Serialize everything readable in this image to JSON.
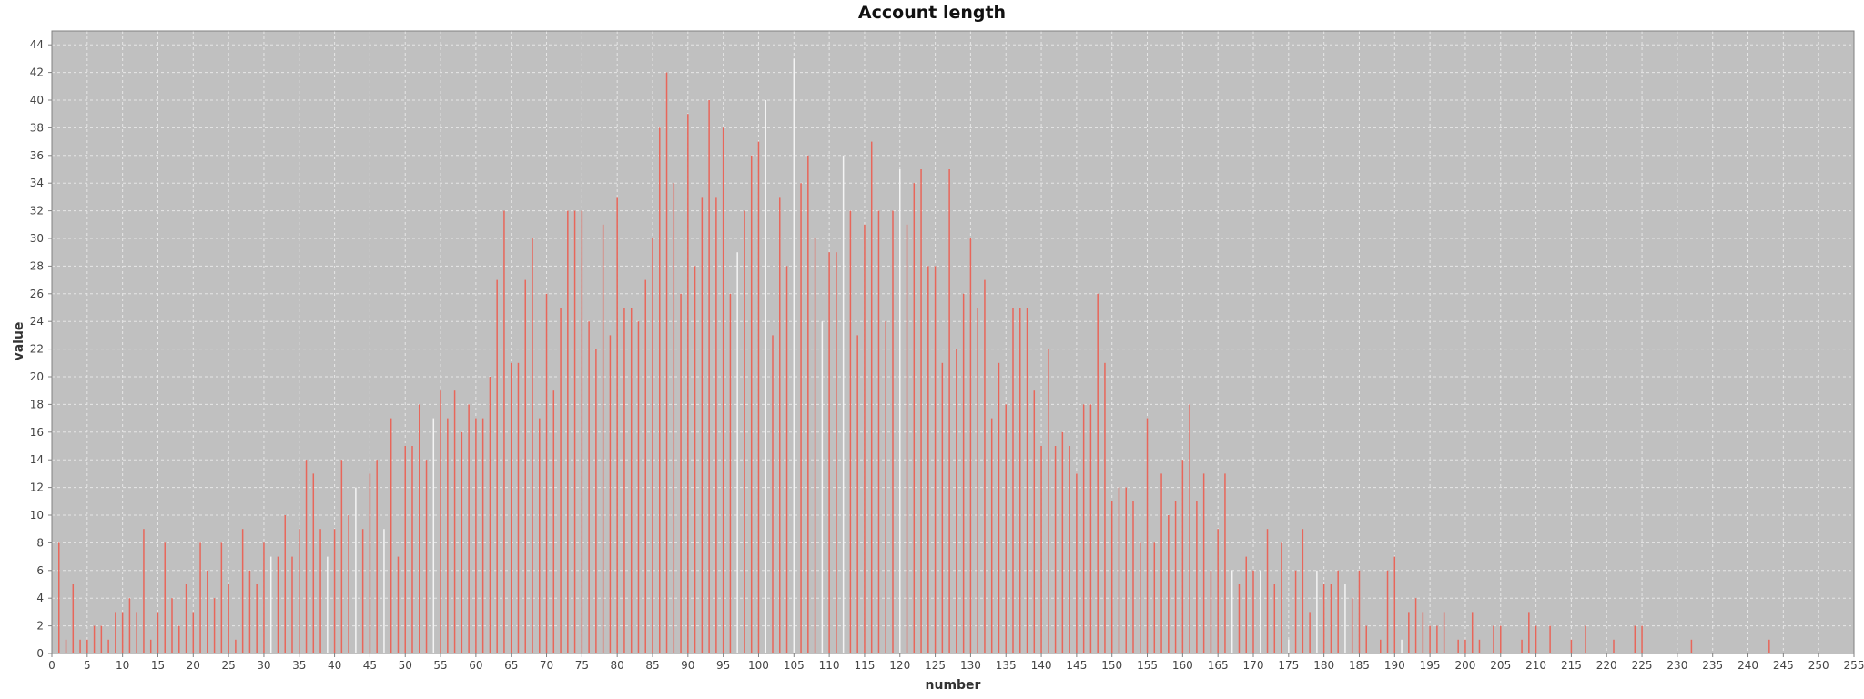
{
  "chart_data": {
    "type": "bar",
    "title": "Account length",
    "xlabel": "number",
    "ylabel": "value",
    "xlim": [
      0,
      255
    ],
    "ylim": [
      0,
      45
    ],
    "x_ticks": [
      0,
      5,
      10,
      15,
      20,
      25,
      30,
      35,
      40,
      45,
      50,
      55,
      60,
      65,
      70,
      75,
      80,
      85,
      90,
      95,
      100,
      105,
      110,
      115,
      120,
      125,
      130,
      135,
      140,
      145,
      150,
      155,
      160,
      165,
      170,
      175,
      180,
      185,
      190,
      195,
      200,
      205,
      210,
      215,
      220,
      225,
      230,
      235,
      240,
      245,
      250,
      255
    ],
    "y_ticks": [
      0,
      2,
      4,
      6,
      8,
      10,
      12,
      14,
      16,
      18,
      20,
      22,
      24,
      26,
      28,
      30,
      32,
      34,
      36,
      38,
      40,
      42,
      44
    ],
    "grid": true,
    "background_color": "#c0c0c0",
    "bar_color": "#e8665a",
    "highlight_color": "#f4f4f4",
    "series": [
      {
        "x": [
          1,
          2,
          3,
          4,
          5,
          6,
          7,
          8,
          9,
          10,
          11,
          12,
          13,
          14,
          15,
          16,
          17,
          18,
          19,
          20,
          21,
          22,
          23,
          24,
          25,
          26,
          27,
          28,
          29,
          30,
          31,
          32,
          33,
          34,
          35,
          36,
          37,
          38,
          39,
          40,
          41,
          42,
          43,
          44,
          45,
          46,
          47,
          48,
          49,
          50,
          51,
          52,
          53,
          54,
          55,
          56,
          57,
          58,
          59,
          60,
          61,
          62,
          63,
          64,
          65,
          66,
          67,
          68,
          69,
          70,
          71,
          72,
          73,
          74,
          75,
          76,
          77,
          78,
          79,
          80,
          81,
          82,
          83,
          84,
          85,
          86,
          87,
          88,
          89,
          90,
          91,
          92,
          93,
          94,
          95,
          96,
          97,
          98,
          99,
          100,
          101,
          102,
          103,
          104,
          105,
          106,
          107,
          108,
          109,
          110,
          111,
          112,
          113,
          114,
          115,
          116,
          117,
          118,
          119,
          120,
          121,
          122,
          123,
          124,
          125,
          126,
          127,
          128,
          129,
          130,
          131,
          132,
          133,
          134,
          135,
          136,
          137,
          138,
          139,
          140,
          141,
          142,
          143,
          144,
          145,
          146,
          147,
          148,
          149,
          150,
          151,
          152,
          153,
          154,
          155,
          156,
          157,
          158,
          159,
          160,
          161,
          162,
          163,
          164,
          165,
          166,
          167,
          168,
          169,
          170,
          171,
          172,
          173,
          174,
          175,
          176,
          177,
          178,
          179,
          180,
          181,
          182,
          183,
          184,
          185,
          186,
          188,
          189,
          190,
          191,
          192,
          193,
          194,
          195,
          196,
          197,
          199,
          200,
          201,
          202,
          204,
          205,
          208,
          209,
          210,
          212,
          215,
          217,
          221,
          224,
          225,
          232,
          243
        ],
        "values": [
          8,
          1,
          5,
          1,
          1,
          2,
          2,
          1,
          3,
          3,
          4,
          3,
          9,
          1,
          3,
          8,
          4,
          2,
          5,
          3,
          8,
          6,
          4,
          8,
          5,
          1,
          9,
          6,
          5,
          8,
          7,
          7,
          10,
          7,
          9,
          14,
          13,
          9,
          7,
          9,
          14,
          10,
          12,
          9,
          13,
          14,
          9,
          17,
          7,
          15,
          15,
          18,
          14,
          17,
          19,
          17,
          19,
          16,
          18,
          17,
          17,
          20,
          27,
          32,
          21,
          21,
          27,
          30,
          17,
          26,
          19,
          25,
          32,
          32,
          32,
          24,
          22,
          31,
          23,
          33,
          25,
          25,
          24,
          27,
          30,
          38,
          42,
          34,
          26,
          39,
          28,
          33,
          40,
          33,
          38,
          26,
          29,
          32,
          36,
          37,
          40,
          23,
          33,
          28,
          43,
          34,
          36,
          30,
          24,
          29,
          29,
          36,
          32,
          23,
          31,
          37,
          32,
          24,
          32,
          35,
          31,
          34,
          35,
          28,
          28,
          21,
          35,
          22,
          26,
          30,
          25,
          27,
          17,
          21,
          18,
          25,
          25,
          25,
          19,
          15,
          22,
          15,
          16,
          15,
          13,
          18,
          18,
          26,
          21,
          11,
          12,
          12,
          11,
          8,
          17,
          8,
          13,
          10,
          11,
          14,
          18,
          11,
          13,
          6,
          9,
          13,
          6,
          5,
          7,
          6,
          6,
          9,
          5,
          8,
          1,
          6,
          9,
          3,
          6,
          5,
          5,
          6,
          5,
          4,
          6,
          2,
          1,
          6,
          7,
          1,
          3,
          4,
          3,
          2,
          2,
          3,
          1,
          1,
          3,
          1,
          2,
          2,
          1,
          3,
          2,
          2,
          1,
          2,
          1,
          2,
          2,
          1,
          1
        ],
        "highlighted_x": [
          31,
          39,
          43,
          47,
          54,
          97,
          101,
          105,
          109,
          112,
          120,
          167,
          171,
          175,
          179,
          183,
          191
        ]
      }
    ]
  }
}
